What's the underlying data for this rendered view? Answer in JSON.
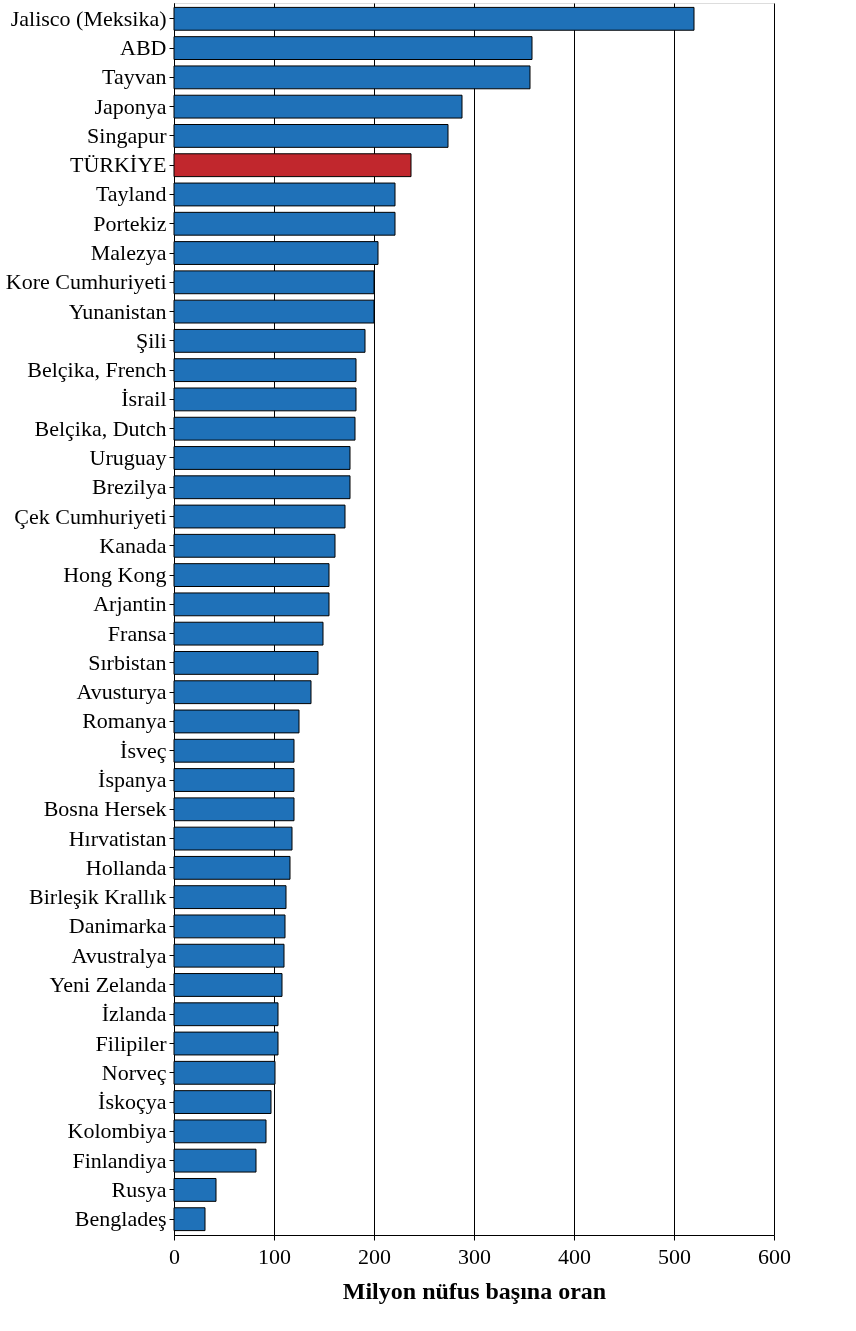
{
  "chart_data": {
    "type": "bar",
    "orientation": "horizontal",
    "xlabel": "Milyon nüfus başına oran",
    "categories": [
      "Jalisco (Meksika)",
      "ABD",
      "Tayvan",
      "Japonya",
      "Singapur",
      "TÜRKİYE",
      "Tayland",
      "Portekiz",
      "Malezya",
      "Kore Cumhuriyeti",
      "Yunanistan",
      "Şili",
      "Belçika, French",
      "İsrail",
      "Belçika, Dutch",
      "Uruguay",
      "Brezilya",
      "Çek Cumhuriyeti",
      "Kanada",
      "Hong Kong",
      "Arjantin",
      "Fransa",
      "Sırbistan",
      "Avusturya",
      "Romanya",
      "İsveç",
      "İspanya",
      "Bosna Hersek",
      "Hırvatistan",
      "Hollanda",
      "Birleşik Krallık",
      "Danimarka",
      "Avustralya",
      "Yeni Zelanda",
      "İzlanda",
      "Filipiler",
      "Norveç",
      "İskoçya",
      "Kolombiya",
      "Finlandiya",
      "Rusya",
      "Bengladeş"
    ],
    "values": [
      520,
      358,
      356,
      288,
      274,
      237,
      221,
      221,
      204,
      200,
      200,
      191,
      182,
      182,
      181,
      176,
      176,
      171,
      161,
      155,
      155,
      149,
      144,
      137,
      125,
      120,
      120,
      120,
      118,
      116,
      112,
      111,
      110,
      108,
      104,
      104,
      101,
      97,
      92,
      82,
      42,
      31
    ],
    "colors": [
      "#1f71b8",
      "#1f71b8",
      "#1f71b8",
      "#1f71b8",
      "#1f71b8",
      "#c1272d",
      "#1f71b8",
      "#1f71b8",
      "#1f71b8",
      "#1f71b8",
      "#1f71b8",
      "#1f71b8",
      "#1f71b8",
      "#1f71b8",
      "#1f71b8",
      "#1f71b8",
      "#1f71b8",
      "#1f71b8",
      "#1f71b8",
      "#1f71b8",
      "#1f71b8",
      "#1f71b8",
      "#1f71b8",
      "#1f71b8",
      "#1f71b8",
      "#1f71b8",
      "#1f71b8",
      "#1f71b8",
      "#1f71b8",
      "#1f71b8",
      "#1f71b8",
      "#1f71b8",
      "#1f71b8",
      "#1f71b8",
      "#1f71b8",
      "#1f71b8",
      "#1f71b8",
      "#1f71b8",
      "#1f71b8",
      "#1f71b8",
      "#1f71b8",
      "#1f71b8"
    ],
    "xlim": [
      0,
      600
    ],
    "xticks": [
      0,
      100,
      200,
      300,
      400,
      500,
      600
    ],
    "grid": "x"
  }
}
